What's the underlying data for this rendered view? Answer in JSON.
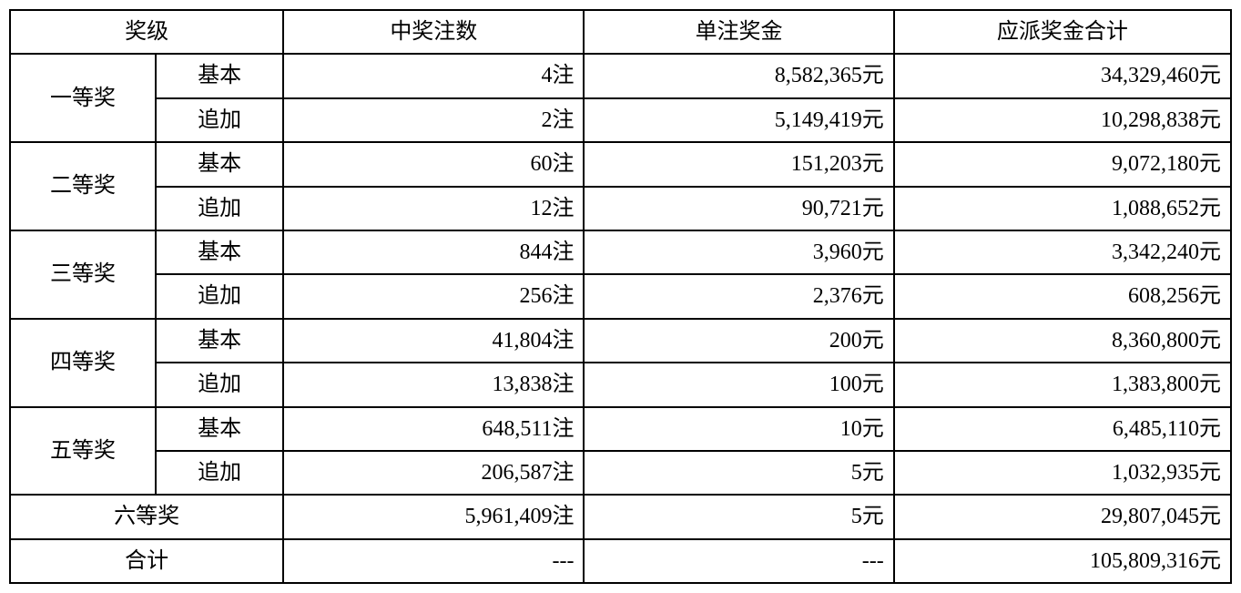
{
  "headers": {
    "prize_level": "奖级",
    "win_count": "中奖注数",
    "unit_prize": "单注奖金",
    "total_prize": "应派奖金合计"
  },
  "subtypes": {
    "basic": "基本",
    "add": "追加"
  },
  "prizes": [
    {
      "name": "一等奖",
      "rows": [
        {
          "type": "basic",
          "count": "4注",
          "unit": "8,582,365元",
          "total": "34,329,460元"
        },
        {
          "type": "add",
          "count": "2注",
          "unit": "5,149,419元",
          "total": "10,298,838元"
        }
      ]
    },
    {
      "name": "二等奖",
      "rows": [
        {
          "type": "basic",
          "count": "60注",
          "unit": "151,203元",
          "total": "9,072,180元"
        },
        {
          "type": "add",
          "count": "12注",
          "unit": "90,721元",
          "total": "1,088,652元"
        }
      ]
    },
    {
      "name": "三等奖",
      "rows": [
        {
          "type": "basic",
          "count": "844注",
          "unit": "3,960元",
          "total": "3,342,240元"
        },
        {
          "type": "add",
          "count": "256注",
          "unit": "2,376元",
          "total": "608,256元"
        }
      ]
    },
    {
      "name": "四等奖",
      "rows": [
        {
          "type": "basic",
          "count": "41,804注",
          "unit": "200元",
          "total": "8,360,800元"
        },
        {
          "type": "add",
          "count": "13,838注",
          "unit": "100元",
          "total": "1,383,800元"
        }
      ]
    },
    {
      "name": "五等奖",
      "rows": [
        {
          "type": "basic",
          "count": "648,511注",
          "unit": "10元",
          "total": "6,485,110元"
        },
        {
          "type": "add",
          "count": "206,587注",
          "unit": "5元",
          "total": "1,032,935元"
        }
      ]
    }
  ],
  "sixth": {
    "name": "六等奖",
    "count": "5,961,409注",
    "unit": "5元",
    "total": "29,807,045元"
  },
  "totalRow": {
    "name": "合计",
    "count": "---",
    "unit": "---",
    "total": "105,809,316元"
  }
}
